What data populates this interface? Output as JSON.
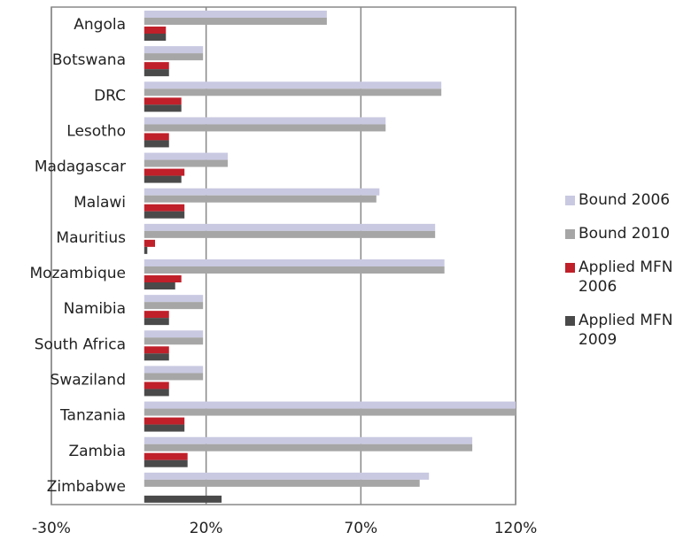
{
  "chart_data": {
    "type": "hbar",
    "categories": [
      "Angola",
      "Botswana",
      "DRC",
      "Lesotho",
      "Madagascar",
      "Malawi",
      "Mauritius",
      "Mozambique",
      "Namibia",
      "South Africa",
      "Swaziland",
      "Tanzania",
      "Zambia",
      "Zimbabwe"
    ],
    "series": [
      {
        "name": "Bound 2006",
        "color": "#c9c9e2",
        "values": [
          59,
          19,
          96,
          78,
          27,
          76,
          94,
          97,
          19,
          19,
          19,
          120,
          106,
          92
        ]
      },
      {
        "name": "Bound 2010",
        "color": "#a6a6a6",
        "values": [
          59,
          19,
          96,
          78,
          27,
          75,
          94,
          97,
          19,
          19,
          19,
          120,
          106,
          89
        ]
      },
      {
        "name": "Applied MFN 2006",
        "color": "#c0202a",
        "values": [
          7,
          8,
          12,
          8,
          13,
          13,
          3.5,
          12,
          8,
          8,
          8,
          13,
          14,
          0
        ]
      },
      {
        "name": "Applied MFN 2009",
        "color": "#4a4a4a",
        "values": [
          7,
          8,
          12,
          8,
          12,
          13,
          1,
          10,
          8,
          8,
          8,
          13,
          14,
          25
        ]
      }
    ],
    "xlim": [
      -30,
      120
    ],
    "xticks": [
      {
        "value": -30,
        "label": "-30%"
      },
      {
        "value": 20,
        "label": "20%"
      },
      {
        "value": 70,
        "label": "70%"
      },
      {
        "value": 120,
        "label": "120%"
      }
    ],
    "grid": true
  }
}
